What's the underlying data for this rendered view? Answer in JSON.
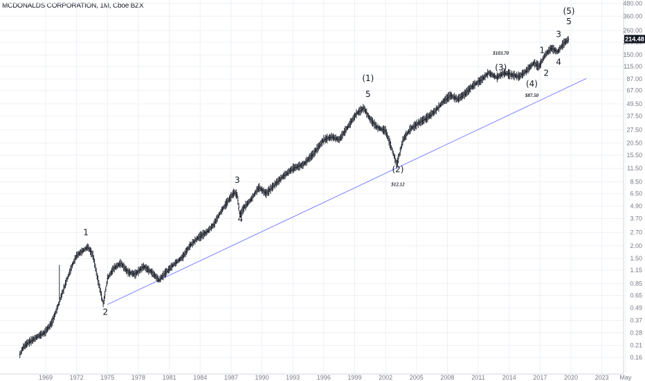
{
  "header": {
    "title": "MCDONALDS CORPORATION, 1M, Cboe BZX"
  },
  "chart_data": {
    "type": "line",
    "title": "MCDONALDS CORPORATION, 1M, Cboe BZX",
    "scale": "log",
    "ylim": [
      0.14,
      520
    ],
    "xlim": [
      1967.3,
      2025.6
    ],
    "y_ticks": [
      "480.00",
      "360.00",
      "260.00",
      "200.00",
      "150.00",
      "115.00",
      "87.00",
      "67.00",
      "49.50",
      "37.50",
      "27.50",
      "20.50",
      "15.50",
      "11.50",
      "8.50",
      "6.50",
      "4.90",
      "3.70",
      "2.70",
      "2.00",
      "1.50",
      "1.15",
      "0.85",
      "0.65",
      "0.49",
      "0.37",
      "0.28",
      "0.21",
      "0.16"
    ],
    "x_ticks": [
      "1969",
      "1972",
      "1975",
      "1978",
      "1981",
      "1984",
      "1987",
      "1990",
      "1993",
      "1996",
      "1999",
      "2002",
      "2005",
      "2008",
      "2011",
      "2014",
      "2017",
      "2020",
      "2023",
      "May"
    ],
    "last_price": "214.48",
    "price_series": [
      {
        "x": 1966.5,
        "y": 0.17
      },
      {
        "x": 1966.8,
        "y": 0.2
      },
      {
        "x": 1967.2,
        "y": 0.22
      },
      {
        "x": 1967.8,
        "y": 0.24
      },
      {
        "x": 1968.3,
        "y": 0.26
      },
      {
        "x": 1968.9,
        "y": 0.28
      },
      {
        "x": 1969.6,
        "y": 0.35
      },
      {
        "x": 1970.1,
        "y": 0.48
      },
      {
        "x": 1970.6,
        "y": 0.68
      },
      {
        "x": 1971.1,
        "y": 0.95
      },
      {
        "x": 1971.6,
        "y": 1.3
      },
      {
        "x": 1972.0,
        "y": 1.6
      },
      {
        "x": 1972.5,
        "y": 1.75
      },
      {
        "x": 1973.1,
        "y": 1.95
      },
      {
        "x": 1973.6,
        "y": 1.6
      },
      {
        "x": 1974.0,
        "y": 1.0
      },
      {
        "x": 1974.6,
        "y": 0.53
      },
      {
        "x": 1975.0,
        "y": 0.95
      },
      {
        "x": 1975.6,
        "y": 1.2
      },
      {
        "x": 1976.3,
        "y": 1.35
      },
      {
        "x": 1977.0,
        "y": 1.1
      },
      {
        "x": 1977.7,
        "y": 1.05
      },
      {
        "x": 1978.5,
        "y": 1.25
      },
      {
        "x": 1979.3,
        "y": 1.1
      },
      {
        "x": 1980.0,
        "y": 0.92
      },
      {
        "x": 1980.7,
        "y": 1.1
      },
      {
        "x": 1981.4,
        "y": 1.3
      },
      {
        "x": 1982.3,
        "y": 1.55
      },
      {
        "x": 1983.0,
        "y": 2.0
      },
      {
        "x": 1983.8,
        "y": 2.4
      },
      {
        "x": 1984.6,
        "y": 2.7
      },
      {
        "x": 1985.3,
        "y": 3.2
      },
      {
        "x": 1986.0,
        "y": 4.3
      },
      {
        "x": 1986.7,
        "y": 5.5
      },
      {
        "x": 1987.3,
        "y": 6.7
      },
      {
        "x": 1987.6,
        "y": 6.3
      },
      {
        "x": 1987.85,
        "y": 4.0
      },
      {
        "x": 1988.3,
        "y": 4.8
      },
      {
        "x": 1989.0,
        "y": 5.8
      },
      {
        "x": 1989.7,
        "y": 7.5
      },
      {
        "x": 1990.4,
        "y": 6.5
      },
      {
        "x": 1991.2,
        "y": 7.9
      },
      {
        "x": 1992.0,
        "y": 9.5
      },
      {
        "x": 1993.0,
        "y": 11.5
      },
      {
        "x": 1994.0,
        "y": 12.5
      },
      {
        "x": 1995.0,
        "y": 16.0
      },
      {
        "x": 1996.0,
        "y": 22.0
      },
      {
        "x": 1996.8,
        "y": 23.5
      },
      {
        "x": 1997.5,
        "y": 22.0
      },
      {
        "x": 1998.3,
        "y": 29.0
      },
      {
        "x": 1999.2,
        "y": 40.0
      },
      {
        "x": 1999.9,
        "y": 45.0
      },
      {
        "x": 2000.5,
        "y": 35.0
      },
      {
        "x": 2001.2,
        "y": 29.0
      },
      {
        "x": 2002.0,
        "y": 27.0
      },
      {
        "x": 2002.6,
        "y": 18.0
      },
      {
        "x": 2003.1,
        "y": 12.5
      },
      {
        "x": 2003.7,
        "y": 22.0
      },
      {
        "x": 2004.4,
        "y": 28.0
      },
      {
        "x": 2005.2,
        "y": 32.0
      },
      {
        "x": 2006.0,
        "y": 36.0
      },
      {
        "x": 2006.8,
        "y": 42.0
      },
      {
        "x": 2007.6,
        "y": 52.0
      },
      {
        "x": 2008.3,
        "y": 60.0
      },
      {
        "x": 2009.0,
        "y": 55.0
      },
      {
        "x": 2009.7,
        "y": 62.0
      },
      {
        "x": 2010.5,
        "y": 75.0
      },
      {
        "x": 2011.3,
        "y": 85.0
      },
      {
        "x": 2012.0,
        "y": 100.0
      },
      {
        "x": 2012.8,
        "y": 90.0
      },
      {
        "x": 2013.5,
        "y": 100.0
      },
      {
        "x": 2014.3,
        "y": 95.0
      },
      {
        "x": 2015.0,
        "y": 92.0
      },
      {
        "x": 2015.7,
        "y": 105.0
      },
      {
        "x": 2016.4,
        "y": 125.0
      },
      {
        "x": 2016.9,
        "y": 115.0
      },
      {
        "x": 2017.5,
        "y": 150.0
      },
      {
        "x": 2018.1,
        "y": 175.0
      },
      {
        "x": 2018.7,
        "y": 160.0
      },
      {
        "x": 2019.3,
        "y": 195.0
      },
      {
        "x": 2019.8,
        "y": 214.48
      }
    ],
    "trendline": [
      {
        "x": 1975.0,
        "y": 0.53
      },
      {
        "x": 2021.5,
        "y": 88.0
      }
    ],
    "wave_labels": [
      {
        "text": "1",
        "x": 1972.9,
        "y": 2.55
      },
      {
        "text": "2",
        "x": 1974.8,
        "y": 0.42
      },
      {
        "text": "3",
        "x": 1987.6,
        "y": 8.3
      },
      {
        "text": "4",
        "x": 1987.9,
        "y": 3.45
      },
      {
        "text": "(1)",
        "x": 2000.3,
        "y": 83.0
      },
      {
        "text": "5",
        "x": 2000.3,
        "y": 58.0
      },
      {
        "text": "(2)",
        "x": 2003.2,
        "y": 10.6
      },
      {
        "text": "(3)",
        "x": 2013.2,
        "y": 106.0
      },
      {
        "text": "(4)",
        "x": 2016.2,
        "y": 73.0
      },
      {
        "text": "1",
        "x": 2017.2,
        "y": 156.0
      },
      {
        "text": "2",
        "x": 2017.6,
        "y": 93.0
      },
      {
        "text": "3",
        "x": 2018.8,
        "y": 225.0
      },
      {
        "text": "4",
        "x": 2018.8,
        "y": 120.0
      },
      {
        "text": "(5)",
        "x": 2019.8,
        "y": 380.0
      },
      {
        "text": "5",
        "x": 2019.8,
        "y": 300.0
      }
    ],
    "annotations": [
      {
        "text": "$103.70",
        "x": 2013.2,
        "y": 150.0
      },
      {
        "text": "$87.50",
        "x": 2016.2,
        "y": 58.0
      },
      {
        "text": "$12.12",
        "x": 2003.2,
        "y": 7.75
      }
    ],
    "colors": {
      "candles": "#131722",
      "trendline": "#7b7fff",
      "price_tag": "#131722",
      "grid": "#eef0f4",
      "axis_text": "#787b86"
    },
    "grid": true
  }
}
